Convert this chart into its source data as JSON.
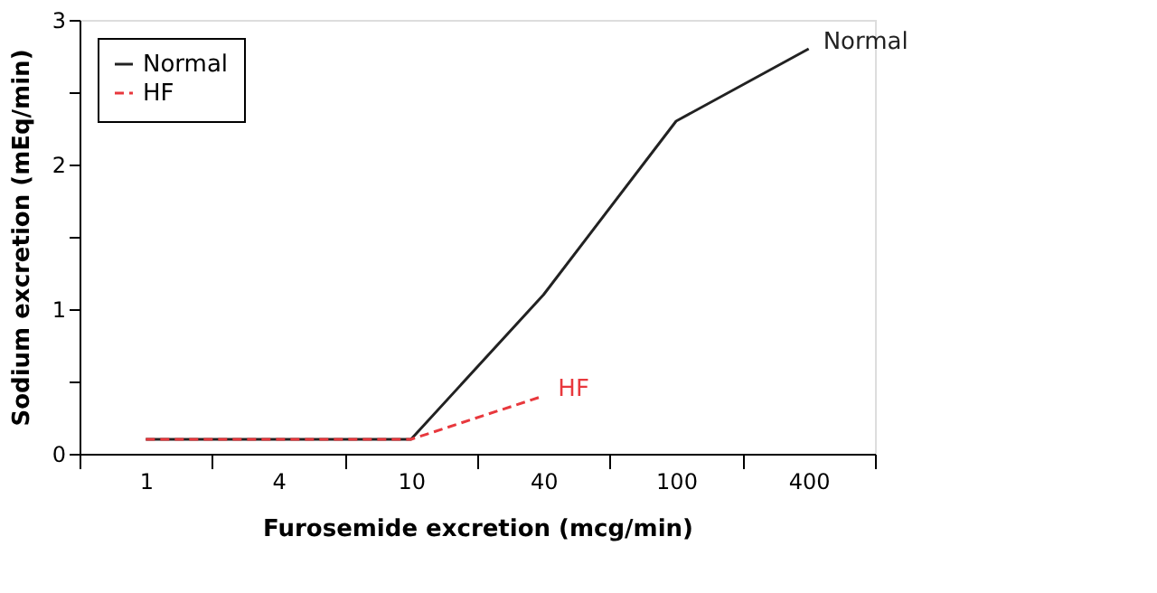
{
  "chart_data": {
    "type": "line",
    "xlabel": "Furosemide excretion (mcg/min)",
    "ylabel": "Sodium excretion (mEq/min)",
    "categories": [
      "1",
      "4",
      "10",
      "40",
      "100",
      "400"
    ],
    "series": [
      {
        "name": "Normal",
        "color": "#222222",
        "line_style": "solid",
        "values": [
          0.1,
          0.1,
          0.1,
          1.1,
          2.3,
          2.8
        ]
      },
      {
        "name": "HF",
        "color": "#e8383d",
        "line_style": "dashed",
        "values": [
          0.1,
          0.1,
          0.1,
          0.4,
          null,
          null
        ]
      }
    ],
    "ylim": [
      0,
      3
    ],
    "yticks": [
      0,
      {
        "value": 0.5,
        "label": null
      },
      1,
      {
        "value": 1.5,
        "label": null
      },
      2,
      {
        "value": 2.5,
        "label": null
      },
      3
    ],
    "annotations": [
      {
        "text": "Normal",
        "x": "400",
        "y": 2.8
      },
      {
        "text": "HF",
        "x": "40",
        "y": 0.4
      }
    ],
    "legend": "top left",
    "grid": false,
    "marker": "none"
  }
}
